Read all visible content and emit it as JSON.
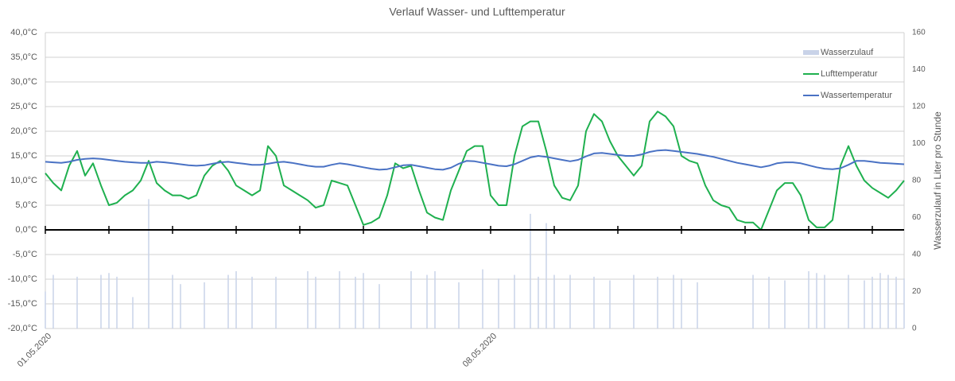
{
  "chart_data": {
    "type": "combo",
    "title": "Verlauf Wasser- und Lufttemperatur",
    "y2label": "Wasserzulauf in Liter pro Stunde",
    "categories": [
      "01.05.2020",
      null,
      null,
      null,
      null,
      null,
      null,
      null,
      null,
      null,
      null,
      null,
      null,
      null,
      null,
      null,
      null,
      null,
      null,
      null,
      null,
      null,
      null,
      null,
      null,
      null,
      null,
      null,
      null,
      null,
      null,
      null,
      null,
      null,
      null,
      null,
      null,
      null,
      null,
      null,
      null,
      null,
      null,
      null,
      null,
      null,
      null,
      null,
      null,
      null,
      null,
      null,
      null,
      null,
      null,
      null,
      "08.05.2020",
      null,
      null,
      null,
      null,
      null,
      null,
      null,
      null,
      null,
      null,
      null,
      null,
      null,
      null,
      null,
      null,
      null,
      null,
      null,
      null,
      null,
      null,
      null,
      null,
      null,
      null,
      null,
      null,
      null,
      null,
      null,
      null,
      null,
      null,
      null,
      null,
      null,
      null,
      null,
      null,
      null,
      null,
      null,
      null,
      null,
      null,
      null,
      null,
      null,
      null,
      null,
      null
    ],
    "series": [
      {
        "name": "Wasserzulauf",
        "type": "bar",
        "axis": "y2",
        "color": "#c9d3e8",
        "values": [
          20,
          29,
          0,
          0,
          28,
          0,
          0,
          29,
          30,
          28,
          0,
          17,
          0,
          70,
          0,
          0,
          29,
          24,
          0,
          0,
          25,
          0,
          0,
          29,
          31,
          0,
          28,
          0,
          0,
          28,
          0,
          0,
          0,
          31,
          28,
          0,
          0,
          31,
          0,
          28,
          30,
          0,
          24,
          0,
          0,
          0,
          31,
          0,
          29,
          31,
          0,
          0,
          25,
          0,
          0,
          32,
          0,
          27,
          0,
          29,
          0,
          62,
          28,
          57,
          29,
          0,
          29,
          0,
          0,
          28,
          0,
          26,
          0,
          0,
          29,
          0,
          0,
          28,
          0,
          29,
          27,
          0,
          25,
          0,
          0,
          0,
          0,
          0,
          0,
          29,
          0,
          28,
          0,
          26,
          0,
          0,
          31,
          30,
          29,
          0,
          0,
          29,
          0,
          26,
          28,
          30,
          29,
          28,
          27
        ]
      },
      {
        "name": "Lufttemperatur",
        "type": "line",
        "color": "#1fb04f",
        "values": [
          11.5,
          9.5,
          8,
          13,
          16,
          11,
          13.5,
          9,
          5,
          5.5,
          7,
          8,
          10,
          14,
          9.5,
          8,
          7,
          7,
          6.3,
          7,
          11,
          13,
          14,
          12,
          9,
          8,
          7,
          8,
          17,
          15,
          9,
          8,
          7,
          6,
          4.5,
          5,
          10,
          9.5,
          9,
          5,
          1,
          1.5,
          2.5,
          7,
          13.5,
          12.5,
          13,
          8,
          3.5,
          2.5,
          2,
          8,
          12,
          16,
          17,
          17,
          7,
          5,
          5,
          15,
          21,
          22,
          22,
          16,
          9,
          6.5,
          6,
          9,
          20,
          23.5,
          22,
          18,
          15,
          13,
          11,
          13,
          22,
          24,
          23,
          21,
          15,
          14,
          13.5,
          9,
          6,
          5,
          4.5,
          2,
          1.5,
          1.5,
          0,
          4,
          8,
          9.5,
          9.5,
          7,
          2,
          0.5,
          0.5,
          2,
          13,
          17,
          13,
          10,
          8.5,
          7.5,
          6.5,
          8,
          10
        ]
      },
      {
        "name": "Wassertemperatur",
        "type": "line",
        "color": "#4a72c4",
        "values": [
          13.8,
          13.7,
          13.6,
          13.8,
          14.2,
          14.4,
          14.5,
          14.4,
          14.2,
          14.0,
          13.8,
          13.7,
          13.6,
          13.6,
          13.8,
          13.7,
          13.5,
          13.3,
          13.1,
          13.0,
          13.1,
          13.4,
          13.7,
          13.8,
          13.6,
          13.4,
          13.2,
          13.2,
          13.4,
          13.7,
          13.8,
          13.6,
          13.3,
          13.0,
          12.8,
          12.8,
          13.2,
          13.5,
          13.3,
          13.0,
          12.7,
          12.4,
          12.2,
          12.3,
          12.7,
          13.1,
          13.2,
          12.9,
          12.6,
          12.3,
          12.2,
          12.6,
          13.4,
          14.0,
          13.9,
          13.6,
          13.3,
          13.0,
          12.9,
          13.3,
          14.0,
          14.7,
          15.0,
          14.8,
          14.5,
          14.2,
          13.9,
          14.2,
          14.9,
          15.5,
          15.6,
          15.4,
          15.2,
          15.0,
          15.0,
          15.3,
          15.8,
          16.1,
          16.2,
          16.0,
          15.8,
          15.6,
          15.4,
          15.1,
          14.8,
          14.4,
          14.0,
          13.6,
          13.3,
          13.0,
          12.7,
          13.0,
          13.5,
          13.7,
          13.7,
          13.5,
          13.1,
          12.7,
          12.4,
          12.3,
          12.5,
          13.2,
          14.0,
          14.0,
          13.8,
          13.6,
          13.5,
          13.4,
          13.3
        ]
      }
    ],
    "ylim": [
      -20,
      40
    ],
    "yticks": [
      {
        "value": -20,
        "label": "-20,0°C"
      },
      {
        "value": -15,
        "label": "-15,0°C"
      },
      {
        "value": -10,
        "label": "-10,0°C"
      },
      {
        "value": -5,
        "label": "-5,0°C"
      },
      {
        "value": 0,
        "label": "0,0°C"
      },
      {
        "value": 5,
        "label": "5,0°C"
      },
      {
        "value": 10,
        "label": "10,0°C"
      },
      {
        "value": 15,
        "label": "15,0°C"
      },
      {
        "value": 20,
        "label": "20,0°C"
      },
      {
        "value": 25,
        "label": "25,0°C"
      },
      {
        "value": 30,
        "label": "30,0°C"
      },
      {
        "value": 35,
        "label": "35,0°C"
      },
      {
        "value": 40,
        "label": "40,0°C"
      }
    ],
    "y2lim": [
      0,
      160
    ],
    "y2ticks": [
      0,
      20,
      40,
      60,
      80,
      100,
      120,
      140,
      160
    ],
    "grid": true,
    "legend": "top-right",
    "day_tick_every": 8
  }
}
